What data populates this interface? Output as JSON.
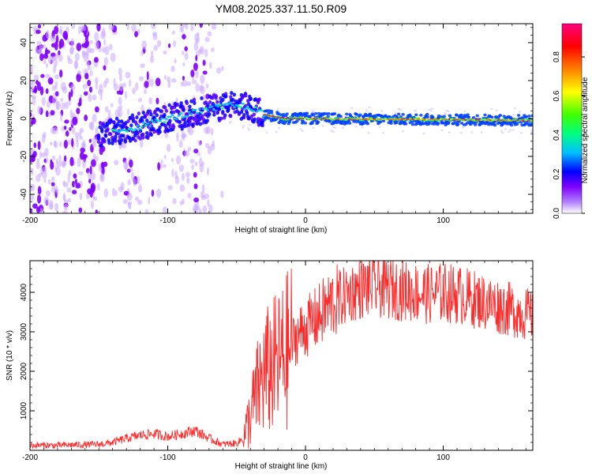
{
  "title": "YM08.2025.337.11.50.R09",
  "chart_data": [
    {
      "type": "heatmap",
      "xlabel": "Height of straight line (km)",
      "ylabel": "Frequency (Hz)",
      "xlim": [
        -200,
        165
      ],
      "ylim": [
        -50,
        50
      ],
      "xticks": [
        -200,
        -100,
        0,
        100
      ],
      "yticks": [
        -40,
        -20,
        0,
        20,
        40
      ],
      "colorbar": {
        "label": "Normalized spectral amplitude",
        "range": [
          0,
          0.97
        ],
        "ticks": [
          0,
          0.2,
          0.4,
          0.6,
          0.8
        ],
        "tick_labels": [
          "0.0",
          "0.2",
          "0.4",
          "0.6",
          "0.8"
        ],
        "colormap": [
          "#ffffff",
          "#8000ff",
          "#0000ff",
          "#00c0ff",
          "#00ff80",
          "#40ff00",
          "#ffff00",
          "#ff8000",
          "#ff0000",
          "#ff0080"
        ]
      },
      "ridge": [
        {
          "x": -150,
          "freq": -8
        },
        {
          "x": -125,
          "freq": -5
        },
        {
          "x": -100,
          "freq": 0
        },
        {
          "x": -75,
          "freq": 4
        },
        {
          "x": -55,
          "freq": 7
        },
        {
          "x": -40,
          "freq": 6
        },
        {
          "x": -30,
          "freq": 2
        },
        {
          "x": -15,
          "freq": 0
        },
        {
          "x": 0,
          "freq": 0
        },
        {
          "x": 165,
          "freq": -1
        }
      ]
    },
    {
      "type": "line",
      "xlabel": "Height of straight line (km)",
      "ylabel": "SNR (10 * v/v)",
      "xlim": [
        -200,
        165
      ],
      "ylim": [
        0,
        4800
      ],
      "xticks": [
        -200,
        -100,
        0,
        100
      ],
      "yticks": [
        1000,
        2000,
        3000,
        4000
      ],
      "color": "#ff2a2a",
      "series": [
        {
          "name": "SNR",
          "x": [
            -200,
            -190,
            -180,
            -170,
            -160,
            -150,
            -140,
            -130,
            -120,
            -110,
            -100,
            -90,
            -80,
            -70,
            -60,
            -50,
            -45,
            -40,
            -35,
            -30,
            -25,
            -20,
            -15,
            -10,
            -5,
            0,
            5,
            10,
            15,
            20,
            25,
            30,
            40,
            50,
            60,
            70,
            80,
            90,
            100,
            110,
            120,
            130,
            140,
            150,
            160,
            165
          ],
          "y": [
            120,
            130,
            120,
            140,
            140,
            150,
            200,
            300,
            380,
            420,
            350,
            420,
            500,
            300,
            150,
            180,
            300,
            900,
            1500,
            1900,
            2100,
            2200,
            2400,
            2700,
            2950,
            3100,
            3250,
            3400,
            3600,
            3750,
            3800,
            3950,
            4100,
            4150,
            4100,
            4050,
            4000,
            3950,
            4000,
            3950,
            3850,
            3750,
            3650,
            3550,
            3450,
            3400
          ]
        }
      ]
    }
  ]
}
